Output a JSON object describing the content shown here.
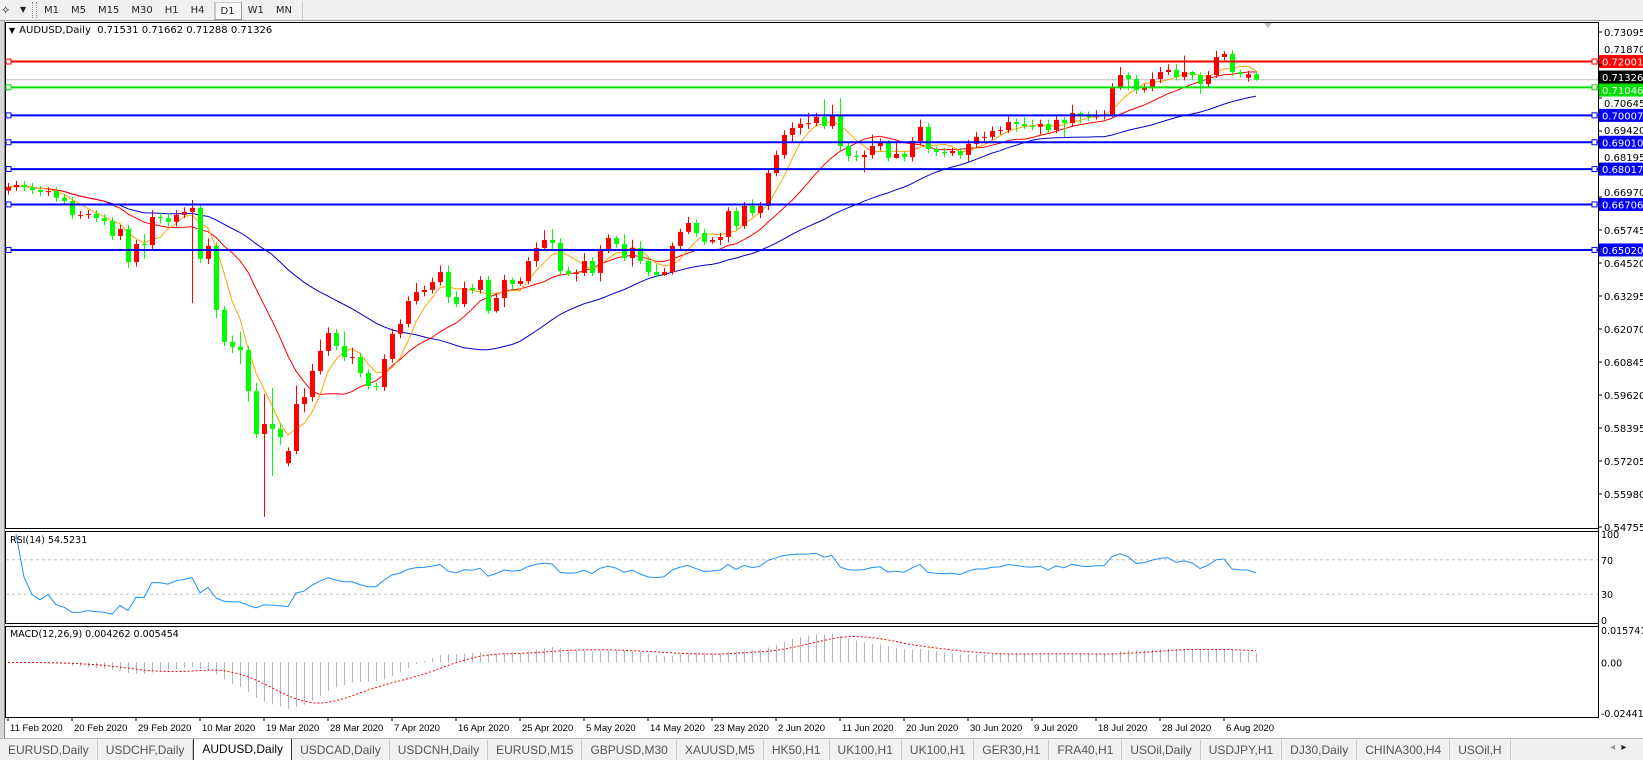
{
  "toolbar": {
    "timeframes": [
      "M1",
      "M5",
      "M15",
      "M30",
      "H1",
      "H4",
      "D1",
      "W1",
      "MN"
    ],
    "active": "D1"
  },
  "chart_header": {
    "symbol": "AUDUSD,Daily",
    "ohlc": "0.71531 0.71662 0.71288 0.71326"
  },
  "colors": {
    "bull": "#ff0000",
    "bear": "#00ff00",
    "ma_fast": "#ffa500",
    "ma_mid": "#ff0000",
    "ma_slow": "#0000c8",
    "rsi": "#1e90ff",
    "macd_hist": "#b4b4b4",
    "macd_signal": "#ff0000",
    "current_price_line": "#c0c0c0"
  },
  "chart_data": {
    "type": "candlestick",
    "ylim": [
      0.54718,
      0.73466
    ],
    "grid": false,
    "price_ticks": [
      "0.73095",
      "0.71870",
      "0.70645",
      "0.69420",
      "0.68195",
      "0.66970",
      "0.65745",
      "0.64520",
      "0.63295",
      "0.62070",
      "0.60845",
      "0.59620",
      "0.58395",
      "0.57205",
      "0.55980",
      "0.54755"
    ],
    "x_tick_labels": [
      "11 Feb 2020",
      "20 Feb 2020",
      "29 Feb 2020",
      "10 Mar 2020",
      "19 Mar 2020",
      "28 Mar 2020",
      "7 Apr 2020",
      "16 Apr 2020",
      "25 Apr 2020",
      "5 May 2020",
      "14 May 2020",
      "23 May 2020",
      "2 Jun 2020",
      "11 Jun 2020",
      "20 Jun 2020",
      "30 Jun 2020",
      "9 Jul 2020",
      "18 Jul 2020",
      "28 Jul 2020",
      "6 Aug 2020"
    ],
    "current_price": {
      "value": 0.71326,
      "label": "0.71326",
      "color": "#000000"
    },
    "horizontal_levels": [
      {
        "value": 0.72001,
        "label": "0.72001",
        "color": "#ff0000"
      },
      {
        "value": 0.71046,
        "label": "0.71046",
        "color": "#00e000"
      },
      {
        "value": 0.70007,
        "label": "0.70007",
        "color": "#0000ff"
      },
      {
        "value": 0.6901,
        "label": "0.69010",
        "color": "#0000ff"
      },
      {
        "value": 0.68017,
        "label": "0.68017",
        "color": "#0000ff"
      },
      {
        "value": 0.66706,
        "label": "0.66706",
        "color": "#0000ff"
      },
      {
        "value": 0.6502,
        "label": "0.65020",
        "color": "#0000ff"
      }
    ],
    "candles_ohlc": [
      [
        0.6722,
        0.675,
        0.6707,
        0.6735
      ],
      [
        0.6735,
        0.6758,
        0.672,
        0.6743
      ],
      [
        0.6743,
        0.6758,
        0.672,
        0.6735
      ],
      [
        0.6735,
        0.675,
        0.6709,
        0.6724
      ],
      [
        0.6724,
        0.6739,
        0.6702,
        0.6717
      ],
      [
        0.6717,
        0.6735,
        0.6702,
        0.672
      ],
      [
        0.672,
        0.6735,
        0.668,
        0.6695
      ],
      [
        0.6695,
        0.671,
        0.6668,
        0.6683
      ],
      [
        0.6683,
        0.6698,
        0.6617,
        0.6632
      ],
      [
        0.6632,
        0.6647,
        0.6617,
        0.6632
      ],
      [
        0.6632,
        0.665,
        0.6617,
        0.6635
      ],
      [
        0.6635,
        0.665,
        0.6605,
        0.662
      ],
      [
        0.662,
        0.6635,
        0.6594,
        0.6609
      ],
      [
        0.6609,
        0.6624,
        0.6539,
        0.6554
      ],
      [
        0.6554,
        0.6595,
        0.6539,
        0.658
      ],
      [
        0.658,
        0.6595,
        0.6434,
        0.6457
      ],
      [
        0.6457,
        0.6539,
        0.644,
        0.6524
      ],
      [
        0.6524,
        0.656,
        0.647,
        0.652
      ],
      [
        0.652,
        0.665,
        0.6505,
        0.6624
      ],
      [
        0.6624,
        0.664,
        0.66,
        0.662
      ],
      [
        0.662,
        0.6638,
        0.659,
        0.6606
      ],
      [
        0.6606,
        0.665,
        0.659,
        0.6632
      ],
      [
        0.6632,
        0.666,
        0.662,
        0.6643
      ],
      [
        0.6643,
        0.6687,
        0.6305,
        0.6658
      ],
      [
        0.6658,
        0.6673,
        0.6454,
        0.6469
      ],
      [
        0.6469,
        0.6545,
        0.645,
        0.6517
      ],
      [
        0.6517,
        0.6532,
        0.625,
        0.628
      ],
      [
        0.628,
        0.6295,
        0.6146,
        0.6161
      ],
      [
        0.6161,
        0.6185,
        0.612,
        0.6143
      ],
      [
        0.6143,
        0.62,
        0.608,
        0.6131
      ],
      [
        0.6131,
        0.6146,
        0.594,
        0.5979
      ],
      [
        0.5979,
        0.601,
        0.5805,
        0.582
      ],
      [
        0.582,
        0.5968,
        0.5513,
        0.5857
      ],
      [
        0.5857,
        0.5991,
        0.5665,
        0.5839
      ],
      [
        0.5839,
        0.586,
        0.578,
        0.5809
      ],
      [
        0.5712,
        0.577,
        0.57,
        0.5757
      ],
      [
        0.5757,
        0.6,
        0.5745,
        0.5931
      ],
      [
        0.5931,
        0.599,
        0.59,
        0.5957
      ],
      [
        0.5957,
        0.608,
        0.594,
        0.6054
      ],
      [
        0.6054,
        0.617,
        0.604,
        0.6128
      ],
      [
        0.6128,
        0.6215,
        0.611,
        0.6194
      ],
      [
        0.6194,
        0.6209,
        0.6131,
        0.6146
      ],
      [
        0.6146,
        0.62,
        0.609,
        0.6105
      ],
      [
        0.6105,
        0.614,
        0.608,
        0.6105
      ],
      [
        0.6105,
        0.612,
        0.603,
        0.6046
      ],
      [
        0.6046,
        0.606,
        0.5985,
        0.5998
      ],
      [
        0.5998,
        0.601,
        0.598,
        0.5994
      ],
      [
        0.5994,
        0.6115,
        0.598,
        0.6098
      ],
      [
        0.6098,
        0.621,
        0.6085,
        0.6191
      ],
      [
        0.6191,
        0.6245,
        0.6175,
        0.6228
      ],
      [
        0.6228,
        0.633,
        0.6215,
        0.6313
      ],
      [
        0.6313,
        0.638,
        0.63,
        0.6346
      ],
      [
        0.6346,
        0.637,
        0.633,
        0.6354
      ],
      [
        0.6354,
        0.64,
        0.634,
        0.6383
      ],
      [
        0.6383,
        0.6445,
        0.637,
        0.642
      ],
      [
        0.642,
        0.6445,
        0.6305,
        0.6328
      ],
      [
        0.6328,
        0.635,
        0.629,
        0.6302
      ],
      [
        0.6302,
        0.6385,
        0.629,
        0.6361
      ],
      [
        0.6361,
        0.6375,
        0.634,
        0.6354
      ],
      [
        0.6354,
        0.6405,
        0.634,
        0.6391
      ],
      [
        0.6391,
        0.6405,
        0.6265,
        0.6276
      ],
      [
        0.6276,
        0.634,
        0.627,
        0.6324
      ],
      [
        0.6324,
        0.641,
        0.629,
        0.6391
      ],
      [
        0.6391,
        0.64,
        0.635,
        0.6376
      ],
      [
        0.6376,
        0.64,
        0.637,
        0.6387
      ],
      [
        0.6387,
        0.6475,
        0.6375,
        0.6461
      ],
      [
        0.6461,
        0.653,
        0.644,
        0.6509
      ],
      [
        0.6509,
        0.6575,
        0.65,
        0.6539
      ],
      [
        0.6539,
        0.658,
        0.65,
        0.6528
      ],
      [
        0.6528,
        0.6545,
        0.641,
        0.6424
      ],
      [
        0.6424,
        0.644,
        0.6405,
        0.6413
      ],
      [
        0.6413,
        0.643,
        0.6385,
        0.6417
      ],
      [
        0.6417,
        0.649,
        0.6405,
        0.6461
      ],
      [
        0.6461,
        0.6475,
        0.6405,
        0.6417
      ],
      [
        0.6417,
        0.652,
        0.6385,
        0.6506
      ],
      [
        0.6506,
        0.656,
        0.649,
        0.6546
      ],
      [
        0.6546,
        0.6555,
        0.651,
        0.6524
      ],
      [
        0.6524,
        0.656,
        0.646,
        0.6472
      ],
      [
        0.6472,
        0.654,
        0.644,
        0.6509
      ],
      [
        0.6509,
        0.6535,
        0.645,
        0.6461
      ],
      [
        0.6461,
        0.6475,
        0.6405,
        0.642
      ],
      [
        0.642,
        0.645,
        0.64,
        0.6409
      ],
      [
        0.6409,
        0.6435,
        0.6405,
        0.642
      ],
      [
        0.642,
        0.653,
        0.641,
        0.6517
      ],
      [
        0.6517,
        0.658,
        0.65,
        0.6569
      ],
      [
        0.6569,
        0.6625,
        0.656,
        0.6602
      ],
      [
        0.6602,
        0.6615,
        0.655,
        0.6565
      ],
      [
        0.6565,
        0.658,
        0.652,
        0.6532
      ],
      [
        0.6532,
        0.655,
        0.6525,
        0.6539
      ],
      [
        0.6539,
        0.6565,
        0.652,
        0.655
      ],
      [
        0.655,
        0.666,
        0.653,
        0.6646
      ],
      [
        0.6646,
        0.666,
        0.6575,
        0.6591
      ],
      [
        0.6591,
        0.668,
        0.658,
        0.6665
      ],
      [
        0.6665,
        0.669,
        0.6625,
        0.6639
      ],
      [
        0.6639,
        0.668,
        0.662,
        0.6665
      ],
      [
        0.6665,
        0.68,
        0.665,
        0.6787
      ],
      [
        0.6787,
        0.687,
        0.6775,
        0.6854
      ],
      [
        0.6854,
        0.6945,
        0.684,
        0.6928
      ],
      [
        0.6928,
        0.6975,
        0.69,
        0.6954
      ],
      [
        0.6954,
        0.699,
        0.693,
        0.6969
      ],
      [
        0.6969,
        0.701,
        0.695,
        0.6972
      ],
      [
        0.6972,
        0.701,
        0.696,
        0.6995
      ],
      [
        0.6995,
        0.706,
        0.695,
        0.6961
      ],
      [
        0.6961,
        0.704,
        0.695,
        0.7002
      ],
      [
        0.7002,
        0.7064,
        0.687,
        0.6887
      ],
      [
        0.6887,
        0.69,
        0.683,
        0.685
      ],
      [
        0.685,
        0.687,
        0.683,
        0.6846
      ],
      [
        0.6846,
        0.687,
        0.679,
        0.6854
      ],
      [
        0.6854,
        0.693,
        0.684,
        0.6887
      ],
      [
        0.6887,
        0.6915,
        0.687,
        0.6898
      ],
      [
        0.6898,
        0.691,
        0.683,
        0.6843
      ],
      [
        0.6843,
        0.69,
        0.684,
        0.6858
      ],
      [
        0.6858,
        0.6865,
        0.683,
        0.6846
      ],
      [
        0.6846,
        0.692,
        0.683,
        0.6906
      ],
      [
        0.6906,
        0.6985,
        0.689,
        0.6958
      ],
      [
        0.6958,
        0.6972,
        0.686,
        0.6876
      ],
      [
        0.6876,
        0.6885,
        0.685,
        0.6865
      ],
      [
        0.6865,
        0.688,
        0.6845,
        0.6861
      ],
      [
        0.6861,
        0.688,
        0.685,
        0.6869
      ],
      [
        0.6869,
        0.688,
        0.684,
        0.6854
      ],
      [
        0.6854,
        0.691,
        0.683,
        0.6895
      ],
      [
        0.6895,
        0.694,
        0.688,
        0.6921
      ],
      [
        0.6921,
        0.694,
        0.6905,
        0.6921
      ],
      [
        0.6921,
        0.696,
        0.691,
        0.6943
      ],
      [
        0.6943,
        0.696,
        0.693,
        0.6946
      ],
      [
        0.6946,
        0.7,
        0.6935,
        0.6976
      ],
      [
        0.6976,
        0.699,
        0.694,
        0.6969
      ],
      [
        0.6969,
        0.6995,
        0.695,
        0.6961
      ],
      [
        0.6961,
        0.6985,
        0.6945,
        0.6958
      ],
      [
        0.6958,
        0.6985,
        0.693,
        0.6969
      ],
      [
        0.6969,
        0.6985,
        0.6935,
        0.6946
      ],
      [
        0.6946,
        0.7,
        0.6935,
        0.6984
      ],
      [
        0.6984,
        0.6995,
        0.692,
        0.6972
      ],
      [
        0.6972,
        0.704,
        0.696,
        0.7009
      ],
      [
        0.7009,
        0.7015,
        0.697,
        0.6998
      ],
      [
        0.6998,
        0.7015,
        0.698,
        0.6995
      ],
      [
        0.6995,
        0.702,
        0.6985,
        0.7002
      ],
      [
        0.7002,
        0.702,
        0.6985,
        0.7002
      ],
      [
        0.7002,
        0.712,
        0.6995,
        0.7106
      ],
      [
        0.7106,
        0.718,
        0.7095,
        0.715
      ],
      [
        0.715,
        0.716,
        0.7095,
        0.7135
      ],
      [
        0.7135,
        0.715,
        0.708,
        0.7095
      ],
      [
        0.7095,
        0.7115,
        0.7085,
        0.7102
      ],
      [
        0.7102,
        0.716,
        0.709,
        0.7135
      ],
      [
        0.7135,
        0.718,
        0.712,
        0.7161
      ],
      [
        0.7161,
        0.719,
        0.715,
        0.7169
      ],
      [
        0.7169,
        0.719,
        0.713,
        0.7143
      ],
      [
        0.7143,
        0.7222,
        0.713,
        0.7161
      ],
      [
        0.7161,
        0.7165,
        0.713,
        0.715
      ],
      [
        0.715,
        0.716,
        0.708,
        0.7117
      ],
      [
        0.7117,
        0.7165,
        0.7105,
        0.715
      ],
      [
        0.715,
        0.724,
        0.714,
        0.7217
      ],
      [
        0.7217,
        0.7238,
        0.7205,
        0.7228
      ],
      [
        0.7228,
        0.7242,
        0.7145,
        0.7161
      ],
      [
        0.7161,
        0.717,
        0.714,
        0.7154
      ],
      [
        0.714,
        0.7165,
        0.7125,
        0.71531
      ],
      [
        0.71531,
        0.71662,
        0.71288,
        0.71326
      ]
    ]
  },
  "rsi": {
    "label": "RSI(14) 54.5231",
    "ticks": [
      "100",
      "70",
      "30",
      "0"
    ],
    "levels": [
      70,
      30
    ]
  },
  "macd": {
    "label": "MACD(12,26,9) 0.004262 0.005454",
    "ticks": [
      "0.015741",
      "0.00",
      "-0.024412"
    ],
    "ylim": [
      -0.024412,
      0.015741
    ]
  },
  "tabs": [
    "EURUSD,Daily",
    "USDCHF,Daily",
    "AUDUSD,Daily",
    "USDCAD,Daily",
    "USDCNH,Daily",
    "EURUSD,M15",
    "GBPUSD,M30",
    "XAUUSD,M5",
    "HK50,H1",
    "UK100,H1",
    "UK100,H1",
    "GER30,H1",
    "FRA40,H1",
    "USOil,Daily",
    "USDJPY,H1",
    "DJ30,Daily",
    "CHINA300,H4",
    "USOil,H"
  ],
  "active_tab": "AUDUSD,Daily",
  "tab_scroll": {
    "left": "◂",
    "right": "▸"
  }
}
